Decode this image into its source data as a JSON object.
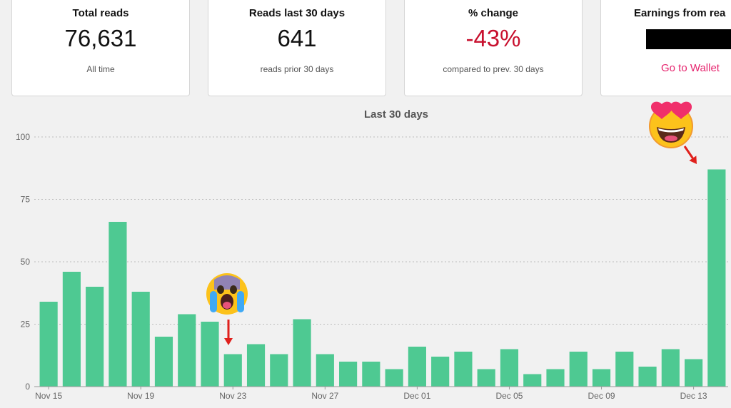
{
  "cards": [
    {
      "title": "Total reads",
      "value": "76,631",
      "sub": "All time"
    },
    {
      "title": "Reads last 30 days",
      "value": "641",
      "sub": "reads prior 30 days"
    },
    {
      "title": "% change",
      "value": "-43%",
      "sub": "compared to prev. 30 days"
    },
    {
      "title": "Earnings from rea",
      "link": "Go to Wallet"
    }
  ],
  "colors": {
    "bar": "#4ec992",
    "negative": "#c8102e",
    "link": "#e6246e",
    "arrow": "#e0201c"
  },
  "icons": [
    "crying-face-icon",
    "heart-eyes-face-icon"
  ],
  "chart_data": {
    "type": "bar",
    "title": "Last 30 days",
    "categories": [
      "Nov 15",
      "Nov 16",
      "Nov 17",
      "Nov 18",
      "Nov 19",
      "Nov 20",
      "Nov 21",
      "Nov 22",
      "Nov 23",
      "Nov 24",
      "Nov 25",
      "Nov 26",
      "Nov 27",
      "Nov 28",
      "Nov 29",
      "Nov 30",
      "Dec 01",
      "Dec 02",
      "Dec 03",
      "Dec 04",
      "Dec 05",
      "Dec 06",
      "Dec 07",
      "Dec 08",
      "Dec 09",
      "Dec 10",
      "Dec 11",
      "Dec 12",
      "Dec 13",
      "Dec 14"
    ],
    "values": [
      34,
      46,
      40,
      66,
      38,
      20,
      29,
      26,
      13,
      17,
      13,
      27,
      13,
      10,
      10,
      7,
      16,
      12,
      14,
      7,
      15,
      5,
      7,
      14,
      7,
      14,
      8,
      15,
      11,
      87
    ],
    "x_tick_labels": [
      "Nov 15",
      "Nov 19",
      "Nov 23",
      "Nov 27",
      "Dec 01",
      "Dec 05",
      "Dec 09",
      "Dec 13"
    ],
    "y_ticks": [
      0,
      25,
      50,
      75,
      100
    ],
    "ylim": [
      0,
      100
    ],
    "grid": true,
    "xlabel": "",
    "ylabel": ""
  }
}
